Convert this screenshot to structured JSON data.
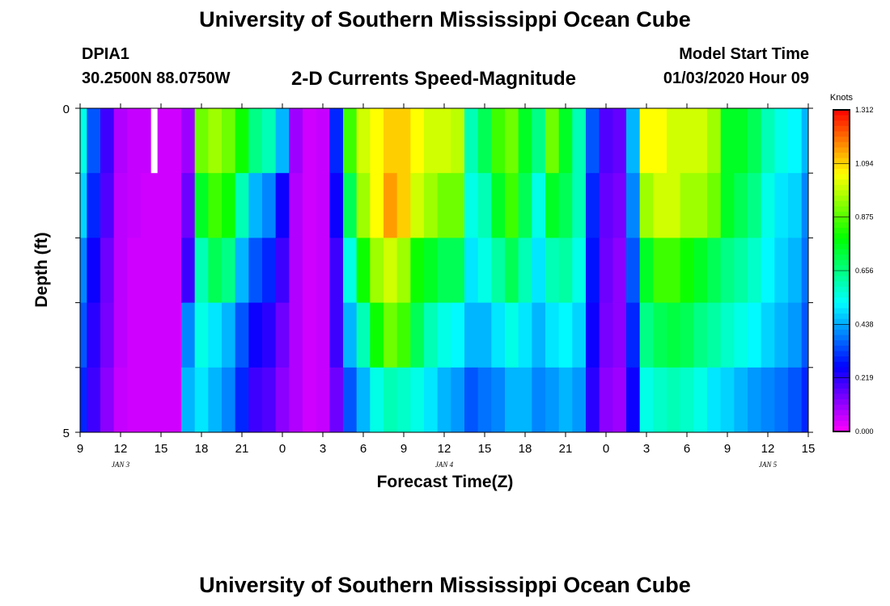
{
  "header": {
    "title": "University of Southern Mississippi Ocean Cube",
    "station_id": "DPIA1",
    "station_coords": "30.2500N 88.0750W",
    "subtitle": "2-D Currents Speed-Magnitude",
    "model_start_label": "Model Start Time",
    "model_start_value": "01/03/2020 Hour 09"
  },
  "footer": {
    "title": "University of Southern Mississippi Ocean Cube"
  },
  "chart_data": {
    "type": "heatmap",
    "title": "2-D Currents Speed-Magnitude",
    "xlabel": "Forecast Time(Z)",
    "ylabel": "Depth (ft)",
    "x_start_hour": 9,
    "x_end_hour": 63,
    "x_tick_labels": [
      "9",
      "12",
      "15",
      "18",
      "21",
      "0",
      "3",
      "6",
      "9",
      "12",
      "15",
      "18",
      "21",
      "0",
      "3",
      "6",
      "9",
      "12",
      "15"
    ],
    "date_labels": [
      "JAN 3",
      "JAN 4",
      "JAN 5"
    ],
    "ylim": [
      0,
      5
    ],
    "y_tick_labels": [
      "0",
      "5"
    ],
    "colorbar": {
      "units": "Knots",
      "min": 0.0,
      "max": 1.312,
      "tick_labels": [
        "1.312",
        "1.094",
        "0.875",
        "0.656",
        "0.438",
        "0.219",
        "0.000"
      ]
    },
    "depth_layers": 5,
    "column_hours": [
      9,
      10,
      11,
      12,
      13,
      14,
      15,
      16,
      17,
      18,
      19,
      20,
      21,
      22,
      23,
      24,
      25,
      26,
      27,
      28,
      29,
      30,
      31,
      32,
      33,
      34,
      35,
      36,
      37,
      38,
      39,
      40,
      41,
      42,
      43,
      44,
      45,
      46,
      47,
      48,
      49,
      50,
      51,
      52,
      53,
      54,
      55,
      56,
      57,
      58,
      59,
      60,
      61,
      62,
      63
    ],
    "layer1_speed_knots": [
      0.55,
      0.35,
      0.2,
      0.08,
      0.06,
      0.06,
      0.05,
      0.05,
      0.1,
      0.9,
      0.95,
      0.9,
      0.8,
      0.65,
      0.6,
      0.45,
      0.1,
      0.05,
      0.06,
      0.3,
      0.85,
      1.0,
      1.05,
      1.1,
      1.1,
      1.05,
      1.0,
      1.0,
      0.98,
      0.6,
      0.7,
      0.85,
      0.9,
      0.75,
      0.65,
      0.9,
      0.75,
      0.6,
      0.35,
      0.18,
      0.16,
      0.45,
      1.05,
      1.05,
      1.0,
      1.0,
      1.0,
      0.95,
      0.75,
      0.75,
      0.7,
      0.6,
      0.55,
      0.52,
      0.45
    ],
    "layer2_speed_knots": [
      0.48,
      0.3,
      0.18,
      0.07,
      0.06,
      0.05,
      0.05,
      0.05,
      0.15,
      0.75,
      0.85,
      0.8,
      0.6,
      0.45,
      0.4,
      0.25,
      0.08,
      0.05,
      0.06,
      0.25,
      0.7,
      0.95,
      1.05,
      1.15,
      1.1,
      1.0,
      0.95,
      0.9,
      0.9,
      0.55,
      0.6,
      0.75,
      0.85,
      0.7,
      0.55,
      0.75,
      0.7,
      0.6,
      0.3,
      0.16,
      0.14,
      0.4,
      0.95,
      1.0,
      1.0,
      0.95,
      0.95,
      0.9,
      0.75,
      0.7,
      0.65,
      0.55,
      0.5,
      0.48,
      0.4
    ],
    "layer3_speed_knots": [
      0.4,
      0.25,
      0.15,
      0.07,
      0.05,
      0.05,
      0.05,
      0.05,
      0.2,
      0.6,
      0.7,
      0.65,
      0.45,
      0.35,
      0.3,
      0.2,
      0.08,
      0.05,
      0.06,
      0.2,
      0.55,
      0.8,
      0.95,
      1.0,
      0.95,
      0.8,
      0.75,
      0.7,
      0.7,
      0.5,
      0.55,
      0.62,
      0.7,
      0.6,
      0.5,
      0.6,
      0.62,
      0.55,
      0.28,
      0.15,
      0.12,
      0.35,
      0.75,
      0.85,
      0.85,
      0.8,
      0.75,
      0.7,
      0.65,
      0.62,
      0.58,
      0.52,
      0.48,
      0.45,
      0.38
    ],
    "layer4_speed_knots": [
      0.35,
      0.22,
      0.14,
      0.07,
      0.05,
      0.05,
      0.05,
      0.05,
      0.4,
      0.55,
      0.5,
      0.45,
      0.35,
      0.25,
      0.22,
      0.15,
      0.08,
      0.05,
      0.06,
      0.2,
      0.45,
      0.6,
      0.8,
      0.9,
      0.85,
      0.7,
      0.6,
      0.55,
      0.52,
      0.45,
      0.45,
      0.5,
      0.55,
      0.5,
      0.45,
      0.5,
      0.52,
      0.48,
      0.25,
      0.14,
      0.12,
      0.3,
      0.65,
      0.7,
      0.72,
      0.7,
      0.65,
      0.62,
      0.58,
      0.55,
      0.52,
      0.48,
      0.45,
      0.42,
      0.35
    ],
    "layer5_speed_knots": [
      0.3,
      0.2,
      0.12,
      0.06,
      0.05,
      0.05,
      0.05,
      0.05,
      0.45,
      0.5,
      0.45,
      0.4,
      0.3,
      0.2,
      0.18,
      0.12,
      0.08,
      0.05,
      0.06,
      0.15,
      0.35,
      0.45,
      0.55,
      0.6,
      0.58,
      0.55,
      0.5,
      0.45,
      0.42,
      0.35,
      0.38,
      0.4,
      0.45,
      0.45,
      0.4,
      0.42,
      0.45,
      0.42,
      0.22,
      0.12,
      0.1,
      0.25,
      0.55,
      0.58,
      0.6,
      0.58,
      0.55,
      0.5,
      0.48,
      0.45,
      0.42,
      0.4,
      0.38,
      0.35,
      0.3
    ],
    "missing_cells": [
      {
        "hour": 14.5,
        "layer": 1
      }
    ]
  }
}
